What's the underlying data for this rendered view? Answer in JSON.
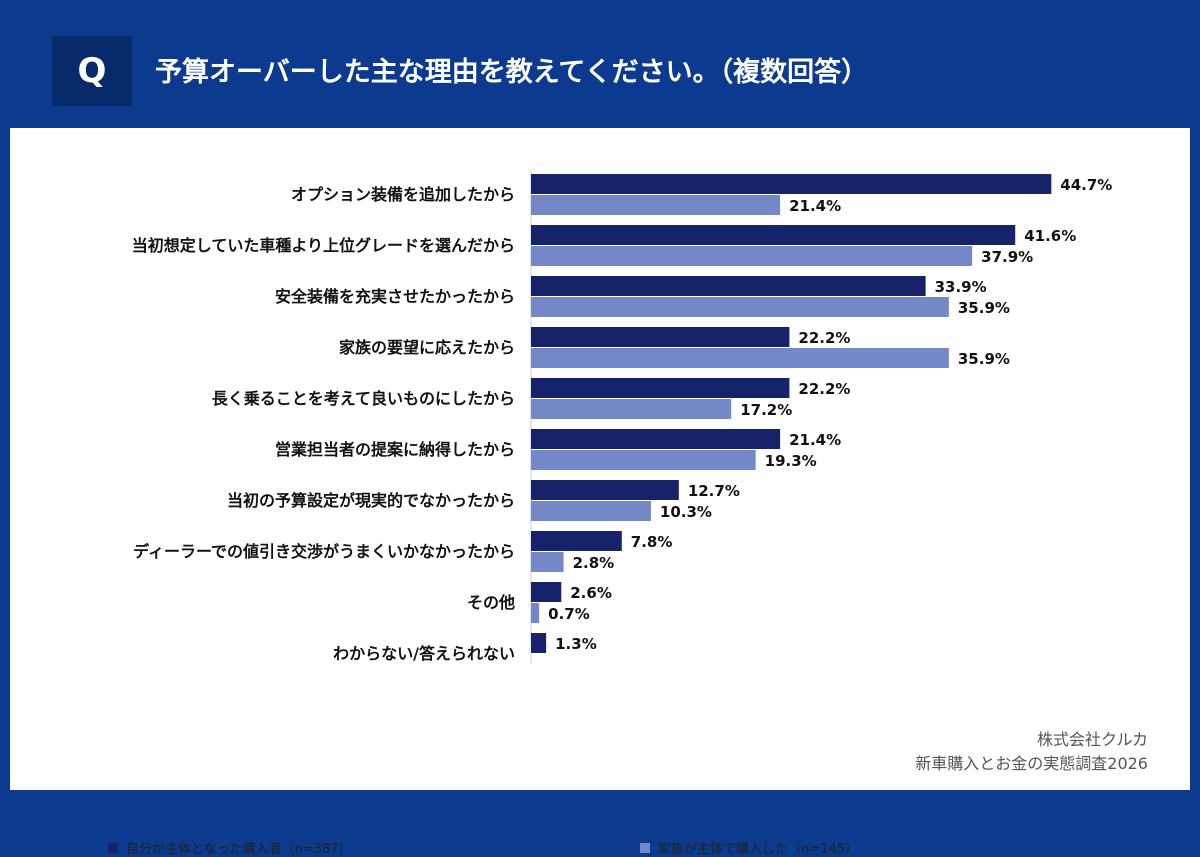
{
  "header": {
    "badge": "Q",
    "question": "予算オーバーした主な理由を教えてください。（複数回答）"
  },
  "colors": {
    "series1": "#16236b",
    "series2": "#7488c8",
    "background": "#0b3a8f"
  },
  "chart_data": {
    "type": "bar",
    "orientation": "horizontal",
    "title": "予算オーバーした主な理由を教えてください。（複数回答）",
    "unit": "%",
    "categories": [
      "オプション装備を追加したから",
      "当初想定していた車種より上位グレードを選んだから",
      "安全装備を充実させたかったから",
      "家族の要望に応えたから",
      "長く乗ることを考えて良いものにしたから",
      "営業担当者の提案に納得したから",
      "当初の予算設定が現実的でなかったから",
      "ディーラーでの値引き交渉がうまくいかなかったから",
      "その他",
      "わからない/答えられない"
    ],
    "series": [
      {
        "name": "自分が主体となった購入者（n=387）",
        "values": [
          44.7,
          41.6,
          33.9,
          22.2,
          22.2,
          21.4,
          12.7,
          7.8,
          2.6,
          1.3
        ]
      },
      {
        "name": "家族が主体で購入した（n=145）",
        "values": [
          21.4,
          37.9,
          35.9,
          35.9,
          17.2,
          19.3,
          10.3,
          2.8,
          0.7,
          null
        ]
      }
    ],
    "xlim": [
      0,
      50
    ],
    "grid": false,
    "legend_position": "bottom"
  },
  "legend": {
    "series1_label": "自分が主体となった購入者（n=387）",
    "series2_label": "家族が主体で購入した（n=145）"
  },
  "source": {
    "company": "株式会社クルカ",
    "survey": "新車購入とお金の実態調査2026"
  }
}
